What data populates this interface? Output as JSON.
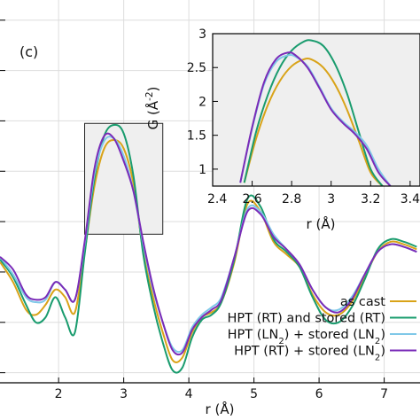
{
  "panel_label": "(c)",
  "chart_data": [
    {
      "type": "line",
      "xlabel": "r (Å)",
      "xlim": [
        1.1,
        7.55
      ],
      "ylim": [
        -2.2,
        5.4
      ],
      "xticks": [
        2,
        3,
        4,
        5,
        6,
        7
      ],
      "ylabel": "",
      "grid": true,
      "legend_position": "bottom-right",
      "zoom_box": {
        "x": [
          2.4,
          3.6
        ],
        "y": [
          0.75,
          2.95
        ]
      },
      "series": [
        {
          "name": "as cast",
          "color": "#D9A318",
          "x": [
            1.1,
            1.3,
            1.5,
            1.65,
            1.8,
            1.95,
            2.1,
            2.25,
            2.4,
            2.55,
            2.7,
            2.85,
            3.0,
            3.15,
            3.3,
            3.45,
            3.6,
            3.75,
            3.9,
            4.05,
            4.2,
            4.35,
            4.5,
            4.7,
            4.9,
            5.1,
            5.3,
            5.5,
            5.7,
            5.9,
            6.1,
            6.3,
            6.5,
            6.7,
            6.9,
            7.1,
            7.3,
            7.5
          ],
          "y": [
            0.2,
            -0.2,
            -0.75,
            -0.85,
            -0.65,
            -0.35,
            -0.5,
            -0.8,
            0.4,
            1.7,
            2.45,
            2.62,
            2.45,
            1.75,
            0.4,
            -0.5,
            -1.2,
            -1.75,
            -1.7,
            -1.2,
            -0.9,
            -0.8,
            -0.6,
            0.2,
            1.35,
            1.2,
            0.6,
            0.35,
            0.1,
            -0.45,
            -0.8,
            -0.85,
            -0.6,
            -0.1,
            0.4,
            0.6,
            0.55,
            0.45
          ]
        },
        {
          "name": "HPT (RT) and stored (RT)",
          "color": "#1A9C6E",
          "x": [
            1.1,
            1.3,
            1.5,
            1.65,
            1.8,
            1.95,
            2.1,
            2.25,
            2.4,
            2.55,
            2.7,
            2.85,
            3.0,
            3.15,
            3.3,
            3.45,
            3.6,
            3.75,
            3.9,
            4.05,
            4.2,
            4.35,
            4.5,
            4.7,
            4.9,
            5.1,
            5.3,
            5.5,
            5.7,
            5.9,
            6.1,
            6.3,
            6.5,
            6.7,
            6.9,
            7.1,
            7.3,
            7.5
          ],
          "y": [
            0.25,
            -0.1,
            -0.65,
            -1.0,
            -0.9,
            -0.5,
            -0.9,
            -1.2,
            0.35,
            1.85,
            2.7,
            2.92,
            2.75,
            1.9,
            0.35,
            -0.65,
            -1.4,
            -1.95,
            -1.9,
            -1.3,
            -0.95,
            -0.85,
            -0.6,
            0.25,
            1.45,
            1.3,
            0.65,
            0.4,
            0.1,
            -0.5,
            -0.95,
            -1.0,
            -0.7,
            -0.15,
            0.45,
            0.65,
            0.6,
            0.5
          ]
        },
        {
          "name": "HPT (LN$_2$) + stored (LN$_2$)",
          "color": "#7FC8E8",
          "x": [
            1.1,
            1.3,
            1.5,
            1.65,
            1.8,
            1.95,
            2.1,
            2.25,
            2.4,
            2.55,
            2.7,
            2.85,
            3.0,
            3.15,
            3.3,
            3.45,
            3.6,
            3.75,
            3.9,
            4.05,
            4.2,
            4.35,
            4.5,
            4.7,
            4.9,
            5.1,
            5.3,
            5.5,
            5.7,
            5.9,
            6.1,
            6.3,
            6.5,
            6.7,
            6.9,
            7.1,
            7.3,
            7.5
          ],
          "y": [
            0.3,
            -0.05,
            -0.5,
            -0.6,
            -0.55,
            -0.2,
            -0.35,
            -0.55,
            0.55,
            1.95,
            2.6,
            2.65,
            2.3,
            1.6,
            0.55,
            -0.35,
            -1.0,
            -1.5,
            -1.55,
            -1.1,
            -0.85,
            -0.7,
            -0.5,
            0.3,
            1.25,
            1.2,
            0.75,
            0.45,
            0.15,
            -0.35,
            -0.7,
            -0.75,
            -0.5,
            -0.05,
            0.4,
            0.55,
            0.5,
            0.4
          ]
        },
        {
          "name": "HPT (RT) + stored (LN$_2$)",
          "color": "#7A2BB8",
          "x": [
            1.1,
            1.3,
            1.5,
            1.65,
            1.8,
            1.95,
            2.1,
            2.25,
            2.4,
            2.55,
            2.7,
            2.85,
            3.0,
            3.15,
            3.3,
            3.45,
            3.6,
            3.75,
            3.9,
            4.05,
            4.2,
            4.35,
            4.5,
            4.7,
            4.9,
            5.1,
            5.3,
            5.5,
            5.7,
            5.9,
            6.1,
            6.3,
            6.5,
            6.7,
            6.9,
            7.1,
            7.3,
            7.5
          ],
          "y": [
            0.3,
            0.05,
            -0.45,
            -0.55,
            -0.5,
            -0.2,
            -0.35,
            -0.55,
            0.6,
            2.05,
            2.7,
            2.65,
            2.2,
            1.6,
            0.6,
            -0.3,
            -1.0,
            -1.55,
            -1.6,
            -1.15,
            -0.9,
            -0.75,
            -0.55,
            0.3,
            1.2,
            1.15,
            0.7,
            0.45,
            0.15,
            -0.35,
            -0.7,
            -0.8,
            -0.55,
            -0.05,
            0.4,
            0.55,
            0.5,
            0.4
          ]
        }
      ],
      "legend": [
        "as cast",
        "HPT (RT) and stored (RT)",
        "HPT (LN$_2$) + stored (LN$_2$)",
        "HPT (RT) + stored (LN$_2$)"
      ]
    },
    {
      "type": "line",
      "role": "inset",
      "xlabel": "r (Å)",
      "ylabel": "G (Å$^{-2}$)",
      "xlim": [
        2.4,
        3.45
      ],
      "ylim": [
        0.75,
        3.0
      ],
      "xticks": [
        2.4,
        2.6,
        2.8,
        3,
        3.2,
        3.4
      ],
      "xtick_labels": [
        "2.4",
        "2.6",
        "2.8",
        "3",
        "3.2",
        "3.4"
      ],
      "yticks": [
        1,
        1.5,
        2,
        2.5,
        3
      ],
      "ytick_labels": [
        "1",
        "1.5",
        "2",
        "2.5",
        "3"
      ],
      "background": "#EFEFEF",
      "series": [
        {
          "name": "as cast",
          "color": "#D9A318",
          "x": [
            2.56,
            2.62,
            2.68,
            2.74,
            2.8,
            2.86,
            2.9,
            2.96,
            3.02,
            3.08,
            3.14,
            3.2,
            3.26
          ],
          "y": [
            0.8,
            1.45,
            1.95,
            2.3,
            2.52,
            2.62,
            2.62,
            2.5,
            2.25,
            1.88,
            1.42,
            0.95,
            0.75
          ]
        },
        {
          "name": "HPT (RT) and stored (RT)",
          "color": "#1A9C6E",
          "x": [
            2.56,
            2.62,
            2.68,
            2.74,
            2.8,
            2.86,
            2.9,
            2.96,
            3.02,
            3.08,
            3.14,
            3.2,
            3.26
          ],
          "y": [
            0.8,
            1.55,
            2.1,
            2.5,
            2.75,
            2.88,
            2.9,
            2.82,
            2.55,
            2.12,
            1.55,
            1.0,
            0.75
          ]
        },
        {
          "name": "HPT (LN$_2$) + stored (LN$_2$)",
          "color": "#7FC8E8",
          "x": [
            2.54,
            2.6,
            2.66,
            2.72,
            2.78,
            2.82,
            2.88,
            2.94,
            3.0,
            3.06,
            3.12,
            3.18,
            3.24,
            3.3
          ],
          "y": [
            0.8,
            1.6,
            2.25,
            2.58,
            2.68,
            2.66,
            2.52,
            2.22,
            1.9,
            1.7,
            1.55,
            1.35,
            1.0,
            0.75
          ]
        },
        {
          "name": "HPT (RT) + stored (LN$_2$)",
          "color": "#7A2BB8",
          "x": [
            2.54,
            2.6,
            2.66,
            2.72,
            2.78,
            2.82,
            2.88,
            2.94,
            3.0,
            3.06,
            3.12,
            3.18,
            3.24,
            3.3
          ],
          "y": [
            0.8,
            1.62,
            2.28,
            2.62,
            2.72,
            2.68,
            2.5,
            2.2,
            1.88,
            1.68,
            1.52,
            1.3,
            0.95,
            0.75
          ]
        }
      ]
    }
  ]
}
